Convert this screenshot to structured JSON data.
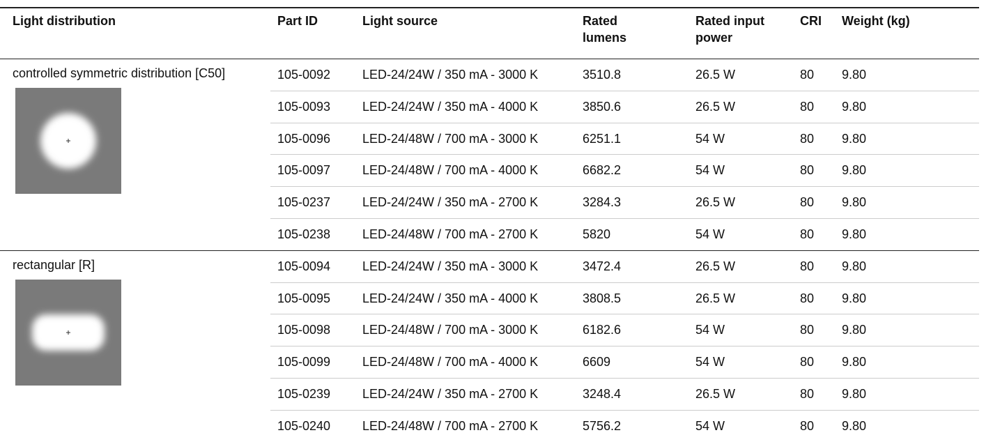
{
  "table": {
    "columns": [
      "Light distribution",
      "Part ID",
      "Light source",
      "Rated lumens",
      "Rated input power",
      "CRI",
      "Weight (kg)"
    ],
    "groups": [
      {
        "distribution": "controlled symmetric distribution [C50]",
        "rows": [
          [
            "105-0092",
            "LED-24/24W / 350 mA - 3000 K",
            "3510.8",
            "26.5 W",
            "80",
            "9.80"
          ],
          [
            "105-0093",
            "LED-24/24W / 350 mA - 4000 K",
            "3850.6",
            "26.5 W",
            "80",
            "9.80"
          ],
          [
            "105-0096",
            "LED-24/48W / 700 mA - 3000 K",
            "6251.1",
            "54 W",
            "80",
            "9.80"
          ],
          [
            "105-0097",
            "LED-24/48W / 700 mA - 4000 K",
            "6682.2",
            "54 W",
            "80",
            "9.80"
          ],
          [
            "105-0237",
            "LED-24/24W / 350 mA - 2700 K",
            "3284.3",
            "26.5 W",
            "80",
            "9.80"
          ],
          [
            "105-0238",
            "LED-24/48W / 700 mA - 2700 K",
            "5820",
            "54 W",
            "80",
            "9.80"
          ]
        ]
      },
      {
        "distribution": "rectangular [R]",
        "rows": [
          [
            "105-0094",
            "LED-24/24W / 350 mA - 3000 K",
            "3472.4",
            "26.5 W",
            "80",
            "9.80"
          ],
          [
            "105-0095",
            "LED-24/24W / 350 mA - 4000 K",
            "3808.5",
            "26.5 W",
            "80",
            "9.80"
          ],
          [
            "105-0098",
            "LED-24/48W / 700 mA - 3000 K",
            "6182.6",
            "54 W",
            "80",
            "9.80"
          ],
          [
            "105-0099",
            "LED-24/48W / 700 mA - 4000 K",
            "6609",
            "54 W",
            "80",
            "9.80"
          ],
          [
            "105-0239",
            "LED-24/24W / 350 mA - 2700 K",
            "3248.4",
            "26.5 W",
            "80",
            "9.80"
          ],
          [
            "105-0240",
            "LED-24/48W / 700 mA - 2700 K",
            "5756.2",
            "54 W",
            "80",
            "9.80"
          ]
        ]
      }
    ]
  }
}
